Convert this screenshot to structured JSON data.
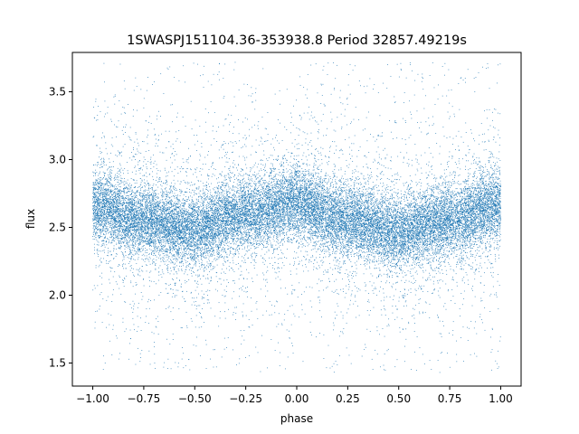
{
  "chart_data": {
    "type": "scatter",
    "title": "1SWASPJ151104.36-353938.8 Period 32857.49219s",
    "xlabel": "phase",
    "ylabel": "flux",
    "xlim": [
      -1.1,
      1.1
    ],
    "ylim": [
      1.33,
      3.79
    ],
    "xticks": [
      -1.0,
      -0.75,
      -0.5,
      -0.25,
      0.0,
      0.25,
      0.5,
      0.75,
      1.0
    ],
    "xtick_labels": [
      "−1.00",
      "−0.75",
      "−0.50",
      "−0.25",
      "0.00",
      "0.25",
      "0.50",
      "0.75",
      "1.00"
    ],
    "yticks": [
      1.5,
      2.0,
      2.5,
      3.0,
      3.5
    ],
    "ytick_labels": [
      "1.5",
      "2.0",
      "2.5",
      "3.0",
      "3.5"
    ],
    "grid": false,
    "marker_color": "#1f77b4",
    "x_range": [
      -1.0,
      1.0
    ],
    "y_range": [
      1.43,
      3.72
    ],
    "trend": {
      "phase": [
        -1.0,
        -0.75,
        -0.5,
        -0.25,
        0.0,
        0.25,
        0.5,
        0.75,
        1.0
      ],
      "flux": [
        2.65,
        2.55,
        2.48,
        2.6,
        2.68,
        2.55,
        2.47,
        2.55,
        2.67
      ]
    }
  }
}
